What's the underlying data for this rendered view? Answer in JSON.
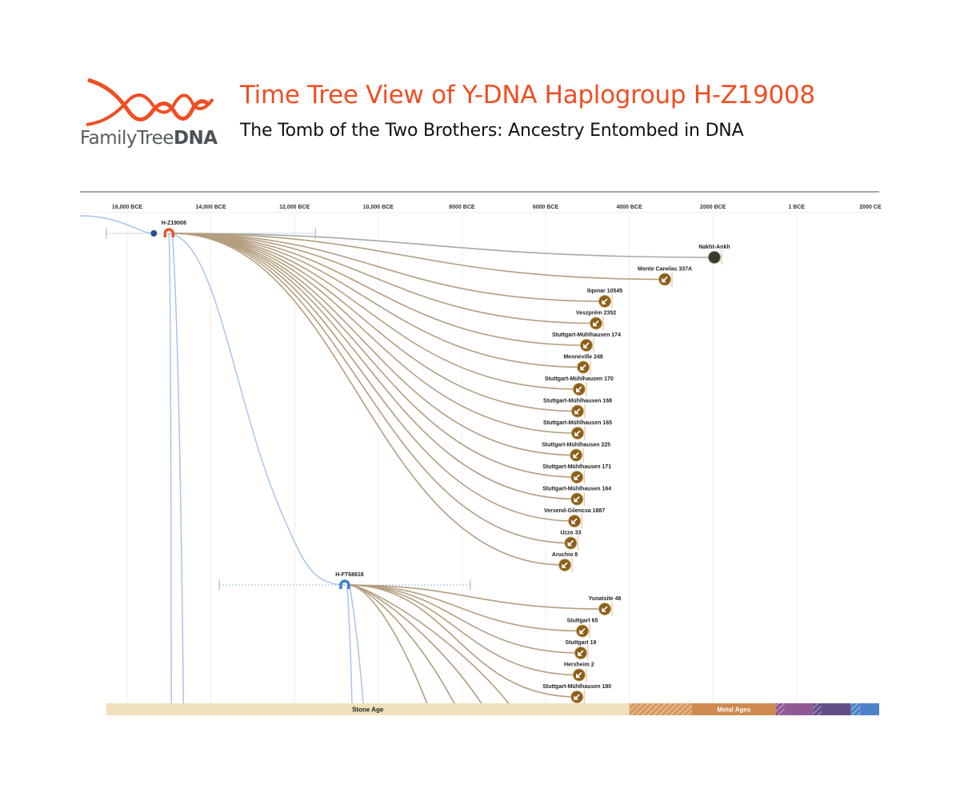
{
  "logo": {
    "text_light": "FamilyTree",
    "text_bold": "DNA"
  },
  "header": {
    "title": "Time Tree View of Y-DNA Haplogroup H-Z19008",
    "subtitle": "The Tomb of the Two Brothers: Ancestry Entombed in DNA"
  },
  "colors": {
    "accent": "#f04e23",
    "branch": "#b49e7f",
    "lineage": "#a9c4ea",
    "sample": "#8b5e1a",
    "node_root": "#e8542a",
    "node_sub": "#3f7fd0"
  },
  "chart_data": {
    "type": "time-tree",
    "axis": {
      "ticks": [
        {
          "label": "16,000 BCE",
          "year": -16000
        },
        {
          "label": "14,000 BCE",
          "year": -14000
        },
        {
          "label": "12,000 BCE",
          "year": -12000
        },
        {
          "label": "10,000 BCE",
          "year": -10000
        },
        {
          "label": "8000 BCE",
          "year": -8000
        },
        {
          "label": "6000 BCE",
          "year": -6000
        },
        {
          "label": "4000 BCE",
          "year": -4000
        },
        {
          "label": "2000 BCE",
          "year": -2000
        },
        {
          "label": "1 BCE",
          "year": 0
        },
        {
          "label": "2000 CE",
          "year": 2000
        }
      ]
    },
    "nodes": [
      {
        "name": "H-Z19008",
        "year": -15000,
        "ci": [
          -16500,
          -11500
        ]
      },
      {
        "name": "H-FT68618",
        "year": -10800,
        "ci": [
          -13800,
          -7800
        ]
      }
    ],
    "samples_root": [
      {
        "name": "Nakht-Ankh",
        "year": -1966,
        "photo": true
      },
      {
        "name": "Monte Canelas 337A",
        "year": -3150
      },
      {
        "name": "Ilıpınar 10545",
        "year": -4585
      },
      {
        "name": "Veszprém 2352",
        "year": -4795
      },
      {
        "name": "Stuttgart-Mühlhausen 174",
        "year": -5025
      },
      {
        "name": "Menneville 248",
        "year": -5100
      },
      {
        "name": "Stuttgart-Mühlhausen 170",
        "year": -5200
      },
      {
        "name": "Stuttgart-Mühlhausen 168",
        "year": -5235
      },
      {
        "name": "Stuttgart-Mühlhausen 165",
        "year": -5235
      },
      {
        "name": "Stuttgart-Mühlhausen 225",
        "year": -5270
      },
      {
        "name": "Stuttgart-Mühlhausen 171",
        "year": -5250
      },
      {
        "name": "Stuttgart-Mühlhausen 164",
        "year": -5250
      },
      {
        "name": "Versend-Gilencsa 1887",
        "year": -5310
      },
      {
        "name": "Uzzo 33",
        "year": -5400
      },
      {
        "name": "Aruchio 8",
        "year": -5540
      }
    ],
    "samples_sub": [
      {
        "name": "Yunatsite 48",
        "year": -4585
      },
      {
        "name": "Stuttgart 65",
        "year": -5120
      },
      {
        "name": "Stuttgart 19",
        "year": -5160
      },
      {
        "name": "Herxheim 2",
        "year": -5200
      },
      {
        "name": "Stuttgart-Mühlhausen 180",
        "year": -5250
      }
    ],
    "eras": [
      {
        "label": "Stone Age",
        "from": -16500,
        "to": -4000,
        "color": "#efe1bb"
      },
      {
        "label": "",
        "from": -4000,
        "to": -2500,
        "color": "#d89a5e",
        "hatched": true
      },
      {
        "label": "Metal Ages",
        "from": -2500,
        "to": -500,
        "color": "#cf8a4f"
      },
      {
        "label": "",
        "from": -500,
        "to": -300,
        "color": "#8f5a95",
        "hatched": true
      },
      {
        "label": "",
        "from": -300,
        "to": 400,
        "color": "#8f5a95"
      },
      {
        "label": "",
        "from": 400,
        "to": 580,
        "color": "#624f8a",
        "hatched": true
      },
      {
        "label": "",
        "from": 580,
        "to": 1300,
        "color": "#624f8a"
      },
      {
        "label": "",
        "from": 1300,
        "to": 1520,
        "color": "#4e82c6",
        "hatched": true
      },
      {
        "label": "",
        "from": 1520,
        "to": 2000,
        "color": "#4e82c6"
      }
    ]
  }
}
